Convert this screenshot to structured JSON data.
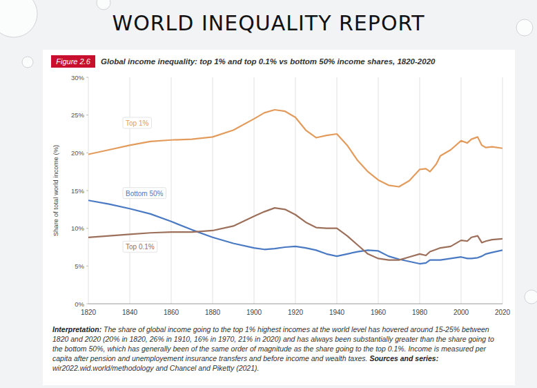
{
  "chart_data": {
    "type": "line",
    "slide_title": "WORLD INEQUALITY REPORT",
    "figure_label": "Figure 2.6",
    "title": "Global income inequality: top 1% and top 0.1% vs bottom 50% income shares, 1820-2020",
    "y_label": "Share of total world income (%)",
    "interpretation_label": "Interpretation:",
    "interpretation": "The share of global income going to the top 1% highest incomes at the world level has hovered around 15-25% between 1820 and 2020 (20% in 1820, 26% in 1910, 16% in 1970, 21% in 2020) and has always been substantially greater than the share going to the bottom 50%, which has generally been of the same order of magnitude as the share going to the top 0.1%. Income is measured per capita after pension and unemployement insurance transfers and before income and wealth taxes.",
    "sources_label": "Sources and series:",
    "sources": "wir2022.wid.world/methodology and Chancel and Piketty (2021).",
    "x": [
      1820,
      1830,
      1840,
      1850,
      1860,
      1870,
      1880,
      1890,
      1900,
      1905,
      1910,
      1915,
      1920,
      1925,
      1930,
      1935,
      1940,
      1945,
      1950,
      1955,
      1960,
      1965,
      1970,
      1975,
      1980,
      1983,
      1985,
      1988,
      1990,
      1995,
      2000,
      2003,
      2005,
      2008,
      2010,
      2012,
      2015,
      2020
    ],
    "series": [
      {
        "name": "Top 1%",
        "color": "#e39b5b",
        "values": [
          19.8,
          20.4,
          21.0,
          21.5,
          21.7,
          21.8,
          22.1,
          23.0,
          24.5,
          25.3,
          25.7,
          25.5,
          24.7,
          23.0,
          22.0,
          22.3,
          22.5,
          21.0,
          19.0,
          17.5,
          16.4,
          15.7,
          15.5,
          16.3,
          17.8,
          17.9,
          17.5,
          18.5,
          19.6,
          20.4,
          21.6,
          21.3,
          21.8,
          22.1,
          21.0,
          20.7,
          20.8,
          20.6
        ]
      },
      {
        "name": "Bottom 50%",
        "color": "#4a79c4",
        "values": [
          13.7,
          13.2,
          12.6,
          11.9,
          10.9,
          9.8,
          8.8,
          8.0,
          7.4,
          7.2,
          7.3,
          7.5,
          7.6,
          7.4,
          7.1,
          6.6,
          6.3,
          6.6,
          6.9,
          7.1,
          7.0,
          6.3,
          5.9,
          5.6,
          5.3,
          5.4,
          5.8,
          5.8,
          5.8,
          6.0,
          6.2,
          6.0,
          6.0,
          6.1,
          6.3,
          6.6,
          6.8,
          7.1
        ]
      },
      {
        "name": "Top 0.1%",
        "color": "#9c6f5a",
        "values": [
          8.8,
          9.0,
          9.2,
          9.4,
          9.5,
          9.5,
          9.7,
          10.3,
          11.6,
          12.2,
          12.7,
          12.5,
          11.8,
          10.8,
          10.1,
          10.0,
          10.0,
          9.0,
          7.8,
          6.6,
          6.0,
          5.8,
          5.8,
          6.2,
          6.6,
          6.4,
          6.9,
          7.2,
          7.4,
          7.6,
          8.4,
          8.3,
          8.8,
          9.0,
          8.1,
          8.3,
          8.5,
          8.6
        ]
      }
    ],
    "xlim": [
      1820,
      2020
    ],
    "xticks": [
      1820,
      1840,
      1860,
      1880,
      1900,
      1920,
      1940,
      1960,
      1980,
      2000,
      2020
    ],
    "ylim": [
      0,
      30
    ],
    "yticks": [
      {
        "value": 0,
        "label": "0%"
      },
      {
        "value": 5,
        "label": "5%"
      },
      {
        "value": 10,
        "label": "10%"
      },
      {
        "value": 15,
        "label": "15%"
      },
      {
        "value": 20,
        "label": "20%"
      },
      {
        "value": 25,
        "label": "25%"
      },
      {
        "value": 30,
        "label": "30%"
      }
    ],
    "grid": true
  }
}
